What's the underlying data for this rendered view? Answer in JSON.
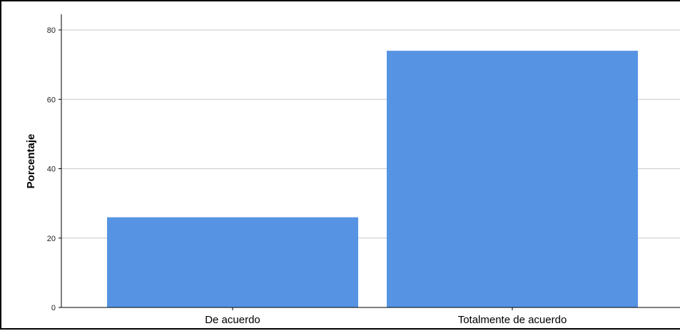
{
  "chart_data": {
    "type": "bar",
    "categories": [
      "De acuerdo",
      "Totalmente de acuerdo"
    ],
    "values": [
      26,
      74
    ],
    "title": "",
    "xlabel": "",
    "ylabel": "Porcentaje",
    "ylim": [
      0,
      80
    ],
    "yticks": [
      "0",
      "20",
      "40",
      "60",
      "80"
    ],
    "grid": true,
    "bar_color": "#5694E3",
    "grid_color": "#C8C8C8"
  }
}
